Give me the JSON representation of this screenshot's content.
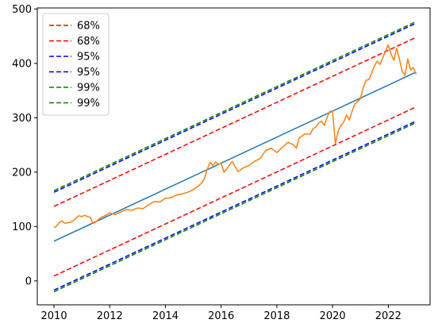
{
  "chart_data": {
    "type": "line",
    "title": "",
    "xlabel": "",
    "ylabel": "",
    "xlim": [
      2009.4,
      2023.5
    ],
    "ylim": [
      -44,
      502
    ],
    "x_ticks": [
      2010,
      2012,
      2014,
      2016,
      2018,
      2020,
      2022
    ],
    "y_ticks": [
      0,
      100,
      200,
      300,
      400,
      500
    ],
    "grid": false,
    "legend_placement": "top-left",
    "legend": [
      {
        "label": "68%",
        "color": "#ff0000",
        "dash": "dashed"
      },
      {
        "label": "68%",
        "color": "#ff0000",
        "dash": "dashed"
      },
      {
        "label": "95%",
        "color": "#0000ff",
        "dash": "dashed"
      },
      {
        "label": "95%",
        "color": "#0000ff",
        "dash": "dashed"
      },
      {
        "label": "99%",
        "color": "#008000",
        "dash": "dashed"
      },
      {
        "label": "99%",
        "color": "#008000",
        "dash": "dashed"
      }
    ],
    "bands": [
      {
        "color": "#ff0000",
        "x": [
          2010,
          2023
        ],
        "upper": [
          137,
          448
        ],
        "lower": [
          9,
          320
        ]
      },
      {
        "color": "#0000ff",
        "x": [
          2010,
          2023
        ],
        "upper": [
          163,
          474
        ],
        "lower": [
          -17,
          294
        ]
      },
      {
        "color": "#008000",
        "x": [
          2010,
          2023
        ],
        "upper": [
          166,
          477
        ],
        "lower": [
          -20,
          291
        ]
      }
    ],
    "trend": {
      "color": "#1f77b4",
      "x": [
        2010,
        2023
      ],
      "y": [
        73,
        384
      ]
    },
    "series": [
      {
        "color": "#ff7f0e",
        "x": [
          2010.0,
          2010.1,
          2010.2,
          2010.3,
          2010.4,
          2010.5,
          2010.6,
          2010.7,
          2010.8,
          2010.9,
          2011.0,
          2011.1,
          2011.2,
          2011.3,
          2011.4,
          2011.5,
          2011.6,
          2011.7,
          2011.8,
          2011.9,
          2012.0,
          2012.2,
          2012.4,
          2012.6,
          2012.8,
          2013.0,
          2013.2,
          2013.4,
          2013.6,
          2013.8,
          2014.0,
          2014.2,
          2014.4,
          2014.6,
          2014.8,
          2015.0,
          2015.2,
          2015.3,
          2015.4,
          2015.5,
          2015.6,
          2015.7,
          2015.8,
          2015.9,
          2016.0,
          2016.1,
          2016.2,
          2016.4,
          2016.6,
          2016.8,
          2017.0,
          2017.2,
          2017.4,
          2017.6,
          2017.8,
          2018.0,
          2018.2,
          2018.4,
          2018.6,
          2018.7,
          2018.8,
          2019.0,
          2019.2,
          2019.3,
          2019.4,
          2019.5,
          2019.6,
          2019.7,
          2019.8,
          2019.9,
          2020.0,
          2020.1,
          2020.2,
          2020.3,
          2020.4,
          2020.5,
          2020.6,
          2020.7,
          2020.8,
          2020.9,
          2021.0,
          2021.1,
          2021.2,
          2021.3,
          2021.4,
          2021.5,
          2021.6,
          2021.7,
          2021.8,
          2021.9,
          2022.0,
          2022.1,
          2022.2,
          2022.3,
          2022.4,
          2022.5,
          2022.6,
          2022.7,
          2022.8,
          2022.9,
          2023.0
        ],
        "y": [
          98,
          101,
          108,
          110,
          106,
          107,
          108,
          111,
          116,
          120,
          118,
          121,
          118,
          117,
          106,
          108,
          113,
          117,
          119,
          122,
          125,
          122,
          127,
          131,
          130,
          134,
          133,
          140,
          146,
          145,
          152,
          153,
          158,
          160,
          163,
          168,
          175,
          180,
          188,
          205,
          218,
          212,
          219,
          215,
          216,
          200,
          206,
          220,
          201,
          208,
          212,
          220,
          225,
          240,
          244,
          236,
          246,
          255,
          250,
          244,
          263,
          270,
          270,
          280,
          283,
          290,
          294,
          286,
          300,
          312,
          312,
          253,
          275,
          286,
          292,
          305,
          296,
          312,
          325,
          330,
          335,
          355,
          369,
          370,
          382,
          395,
          404,
          398,
          410,
          422,
          434,
          417,
          406,
          428,
          408,
          385,
          378,
          408,
          388,
          392,
          380
        ]
      }
    ]
  }
}
